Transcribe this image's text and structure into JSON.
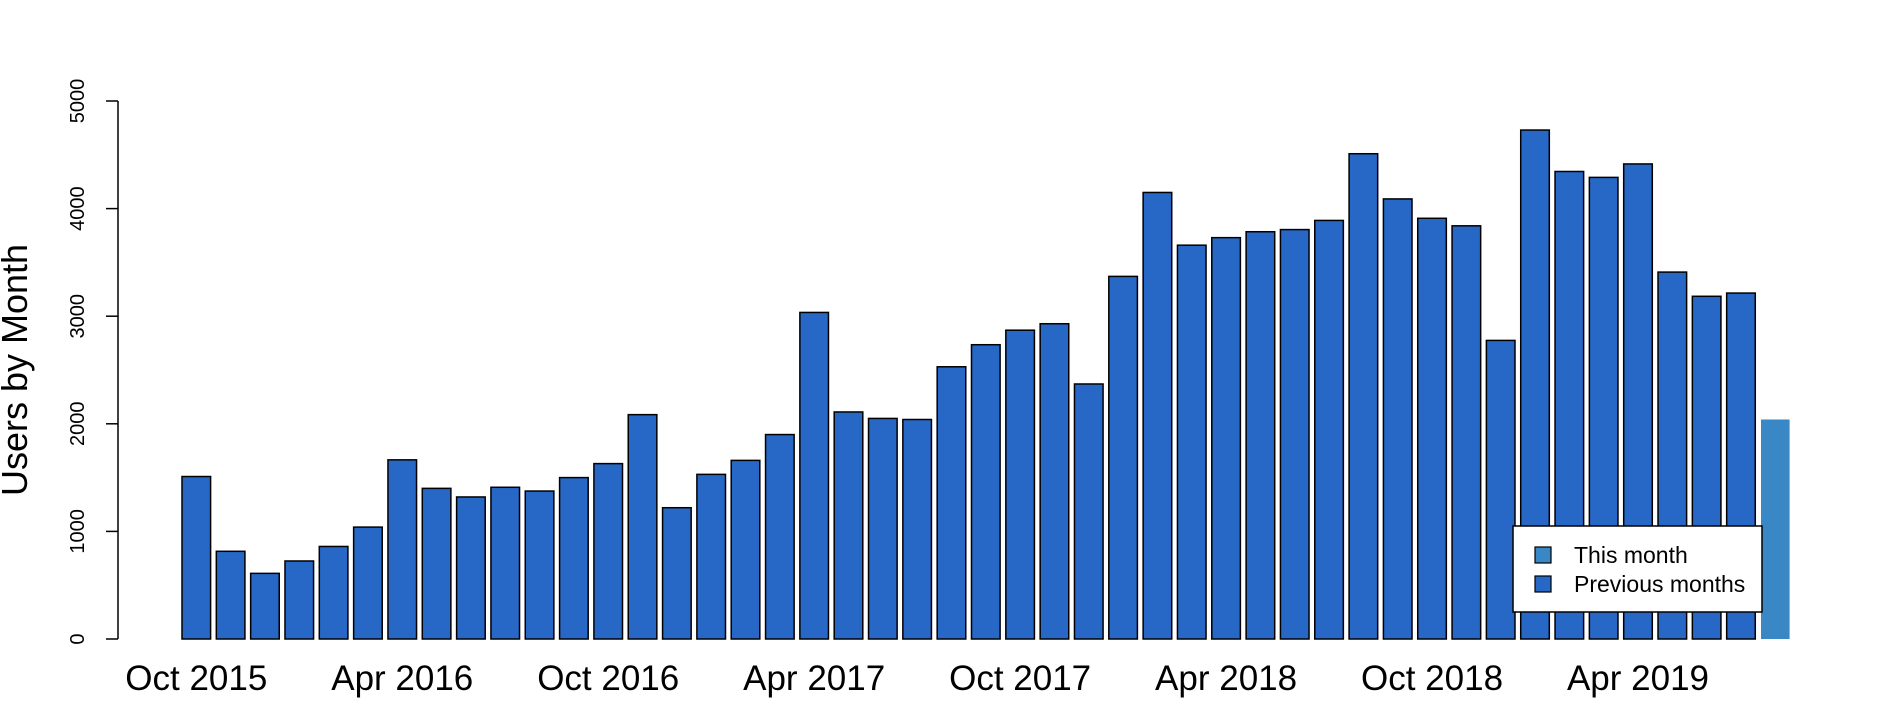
{
  "chart_data": {
    "type": "bar",
    "ylabel": "Users by Month",
    "ylim": [
      0,
      5000
    ],
    "yticks": [
      0,
      1000,
      2000,
      3000,
      4000,
      5000
    ],
    "categories": [
      "Oct 2015",
      "Nov 2015",
      "Dec 2015",
      "Jan 2016",
      "Feb 2016",
      "Mar 2016",
      "Apr 2016",
      "May 2016",
      "Jun 2016",
      "Jul 2016",
      "Aug 2016",
      "Sep 2016",
      "Oct 2016",
      "Nov 2016",
      "Dec 2016",
      "Jan 2017",
      "Feb 2017",
      "Mar 2017",
      "Apr 2017",
      "May 2017",
      "Jun 2017",
      "Jul 2017",
      "Aug 2017",
      "Sep 2017",
      "Oct 2017",
      "Nov 2017",
      "Dec 2017",
      "Jan 2018",
      "Feb 2018",
      "Mar 2018",
      "Apr 2018",
      "May 2018",
      "Jun 2018",
      "Jul 2018",
      "Aug 2018",
      "Sep 2018",
      "Oct 2018",
      "Nov 2018",
      "Dec 2018",
      "Jan 2019",
      "Feb 2019",
      "Mar 2019",
      "Apr 2019",
      "May 2019",
      "Jun 2019",
      "Jul 2019",
      "Aug 2019"
    ],
    "xtick_labels": [
      "Oct 2015",
      "Apr 2016",
      "Oct 2016",
      "Apr 2017",
      "Oct 2017",
      "Apr 2018",
      "Oct 2018",
      "Apr 2019"
    ],
    "series": [
      {
        "name": "Previous months",
        "color": "#2767c6",
        "values": [
          1510,
          815,
          610,
          725,
          860,
          1040,
          1665,
          1400,
          1320,
          1410,
          1375,
          1500,
          1630,
          2085,
          1220,
          1530,
          1660,
          1900,
          3035,
          2110,
          2050,
          2040,
          2530,
          2735,
          2870,
          2930,
          2370,
          3370,
          4150,
          3660,
          3730,
          3785,
          3805,
          3890,
          4510,
          4090,
          3910,
          3840,
          2775,
          4730,
          4345,
          4290,
          4415,
          3410,
          3185,
          3215,
          null
        ]
      },
      {
        "name": "This month",
        "color": "#3a87c5",
        "values": [
          null,
          null,
          null,
          null,
          null,
          null,
          null,
          null,
          null,
          null,
          null,
          null,
          null,
          null,
          null,
          null,
          null,
          null,
          null,
          null,
          null,
          null,
          null,
          null,
          null,
          null,
          null,
          null,
          null,
          null,
          null,
          null,
          null,
          null,
          null,
          null,
          null,
          null,
          null,
          null,
          null,
          null,
          null,
          null,
          null,
          null,
          2040
        ]
      }
    ],
    "legend": {
      "position": "bottom-right",
      "entries": [
        {
          "label": "This month",
          "color": "#3a87c5"
        },
        {
          "label": "Previous months",
          "color": "#2767c6"
        }
      ]
    },
    "grid": false
  }
}
